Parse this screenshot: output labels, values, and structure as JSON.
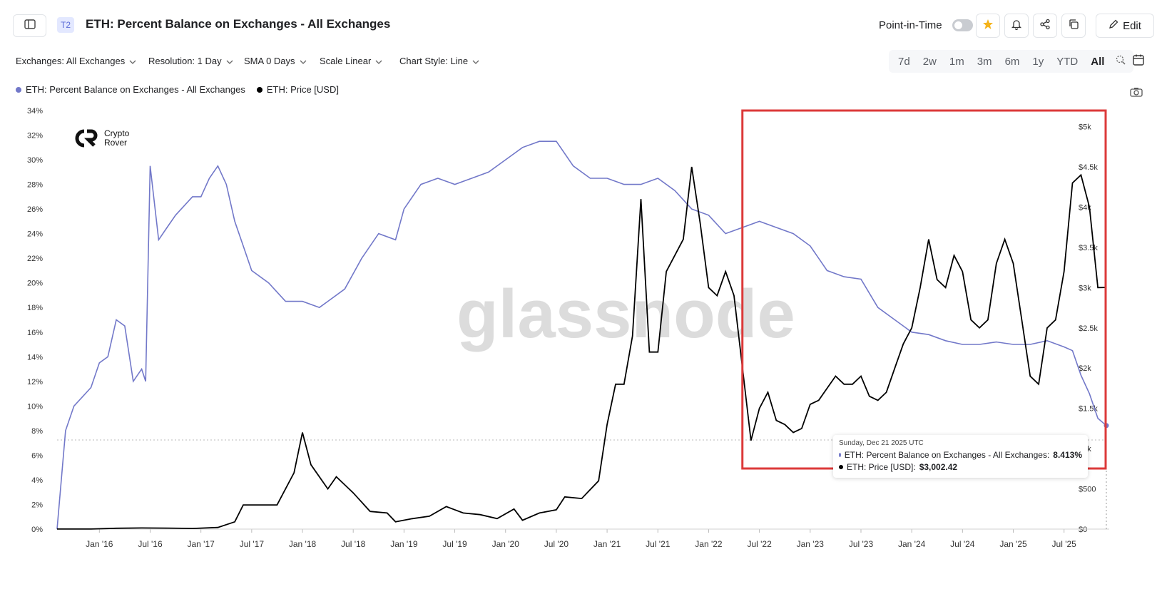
{
  "header": {
    "tier_badge": "T2",
    "title": "ETH: Percent Balance on Exchanges - All Exchanges",
    "point_in_time_label": "Point-in-Time",
    "edit_label": "Edit"
  },
  "controls": {
    "exchanges": "Exchanges: All Exchanges",
    "resolution": "Resolution: 1 Day",
    "sma": "SMA 0 Days",
    "scale": "Scale Linear",
    "chart_style": "Chart Style: Line",
    "ranges": [
      "7d",
      "2w",
      "1m",
      "3m",
      "6m",
      "1y",
      "YTD",
      "All"
    ],
    "active_range": "All"
  },
  "legend": {
    "items": [
      {
        "label": "ETH: Percent Balance on Exchanges - All Exchanges",
        "color": "#7278c9"
      },
      {
        "label": "ETH: Price [USD]",
        "color": "#000000"
      }
    ]
  },
  "watermark": {
    "text": "glassnode",
    "logo_line1": "Crypto",
    "logo_line2": "Rover"
  },
  "tooltip": {
    "date": "Sunday, Dec 21 2025 UTC",
    "balance_label": "ETH: Percent Balance on Exchanges - All Exchanges:",
    "balance_value": "8.413%",
    "price_label": "ETH: Price [USD]:",
    "price_value": "$3,002.42"
  },
  "colors": {
    "balance_line": "#7278c9",
    "price_line": "#000000",
    "highlight_box": "#dc3a3a",
    "accent_star": "#f5b31a"
  },
  "icons": [
    "sidebar-icon",
    "star-icon",
    "bell-icon",
    "share-icon",
    "copy-icon",
    "pencil-icon",
    "chevron-down-icon",
    "zoom-icon",
    "calendar-icon",
    "camera-icon"
  ],
  "chart_data": {
    "type": "line",
    "x_tick_labels": [
      "Jan '16",
      "Jul '16",
      "Jan '17",
      "Jul '17",
      "Jan '18",
      "Jul '18",
      "Jan '19",
      "Jul '19",
      "Jan '20",
      "Jul '20",
      "Jan '21",
      "Jul '21",
      "Jan '22",
      "Jul '22",
      "Jan '23",
      "Jul '23",
      "Jan '24",
      "Jul '24",
      "Jan '25",
      "Jul '25"
    ],
    "y_left_ticks": [
      "0%",
      "2%",
      "4%",
      "6%",
      "8%",
      "10%",
      "12%",
      "14%",
      "16%",
      "18%",
      "20%",
      "22%",
      "24%",
      "26%",
      "28%",
      "30%",
      "32%",
      "34%"
    ],
    "y_right_ticks": [
      "$0",
      "$500",
      "$1k",
      "$1.5k",
      "$2k",
      "$2.5k",
      "$3k",
      "$3.5k",
      "$4k",
      "$4.5k",
      "$5k"
    ],
    "y_left_range": [
      0,
      34
    ],
    "y_right_range": [
      0,
      5200
    ],
    "x_range": [
      "2015-08",
      "2025-12"
    ],
    "grid": false,
    "series": [
      {
        "name": "ETH: Percent Balance on Exchanges - All Exchanges",
        "axis": "left",
        "unit": "%",
        "x": [
          "2015-08",
          "2015-09",
          "2015-10",
          "2015-12",
          "2016-01",
          "2016-02",
          "2016-03",
          "2016-04",
          "2016-05",
          "2016-06",
          "2016-06-15",
          "2016-07",
          "2016-08",
          "2016-09",
          "2016-10",
          "2016-12",
          "2017-01",
          "2017-02",
          "2017-03",
          "2017-04",
          "2017-05",
          "2017-06",
          "2017-07",
          "2017-09",
          "2017-11",
          "2018-01",
          "2018-03",
          "2018-04",
          "2018-06",
          "2018-08",
          "2018-10",
          "2018-12",
          "2019-01",
          "2019-03",
          "2019-05",
          "2019-07",
          "2019-09",
          "2019-11",
          "2020-01",
          "2020-03",
          "2020-05",
          "2020-07",
          "2020-09",
          "2020-11",
          "2021-01",
          "2021-03",
          "2021-05",
          "2021-07",
          "2021-09",
          "2021-11",
          "2022-01",
          "2022-03",
          "2022-05",
          "2022-07",
          "2022-09",
          "2022-11",
          "2023-01",
          "2023-03",
          "2023-05",
          "2023-07",
          "2023-09",
          "2023-11",
          "2024-01",
          "2024-03",
          "2024-05",
          "2024-07",
          "2024-09",
          "2024-11",
          "2025-01",
          "2025-03",
          "2025-05",
          "2025-07",
          "2025-08",
          "2025-09",
          "2025-10",
          "2025-11",
          "2025-12"
        ],
        "values": [
          0,
          8,
          10,
          11.5,
          13.5,
          14,
          17,
          16.5,
          12,
          13,
          12,
          29.5,
          23.5,
          24.5,
          25.5,
          27,
          27,
          28.5,
          29.5,
          28,
          25,
          23,
          21,
          20,
          18.5,
          18.5,
          18,
          18.5,
          19.5,
          22,
          24,
          23.5,
          26,
          28,
          28.5,
          28,
          28.5,
          29,
          30,
          31,
          31.5,
          31.5,
          29.5,
          28.5,
          28.5,
          28,
          28,
          28.5,
          27.5,
          26,
          25.5,
          24,
          24.5,
          25,
          24.5,
          24,
          23,
          21,
          20.5,
          20.3,
          18,
          17,
          16,
          15.8,
          15.3,
          15,
          15,
          15.2,
          15,
          15,
          15.3,
          14.8,
          14.5,
          12.5,
          11,
          9,
          8.413
        ]
      },
      {
        "name": "ETH: Price [USD]",
        "axis": "right",
        "unit": "USD",
        "x": [
          "2015-08",
          "2015-12",
          "2016-03",
          "2016-06",
          "2016-09",
          "2016-12",
          "2017-03",
          "2017-05",
          "2017-06",
          "2017-08",
          "2017-10",
          "2017-12",
          "2018-01",
          "2018-02",
          "2018-04",
          "2018-05",
          "2018-07",
          "2018-09",
          "2018-11",
          "2018-12",
          "2019-02",
          "2019-04",
          "2019-06",
          "2019-08",
          "2019-10",
          "2019-12",
          "2020-02",
          "2020-03",
          "2020-05",
          "2020-07",
          "2020-08",
          "2020-10",
          "2020-12",
          "2021-01",
          "2021-02",
          "2021-03",
          "2021-04",
          "2021-05",
          "2021-06",
          "2021-07",
          "2021-08",
          "2021-09",
          "2021-10",
          "2021-11",
          "2021-12",
          "2022-01",
          "2022-02",
          "2022-03",
          "2022-04",
          "2022-05",
          "2022-06",
          "2022-07",
          "2022-08",
          "2022-09",
          "2022-10",
          "2022-11",
          "2022-12",
          "2023-01",
          "2023-02",
          "2023-03",
          "2023-04",
          "2023-05",
          "2023-06",
          "2023-07",
          "2023-08",
          "2023-09",
          "2023-10",
          "2023-11",
          "2023-12",
          "2024-01",
          "2024-02",
          "2024-03",
          "2024-04",
          "2024-05",
          "2024-06",
          "2024-07",
          "2024-08",
          "2024-09",
          "2024-10",
          "2024-11",
          "2024-12",
          "2025-01",
          "2025-02",
          "2025-03",
          "2025-04",
          "2025-05",
          "2025-06",
          "2025-07",
          "2025-08",
          "2025-09",
          "2025-10",
          "2025-11",
          "2025-12"
        ],
        "values": [
          1,
          1,
          11,
          14,
          12,
          8,
          20,
          90,
          300,
          300,
          300,
          700,
          1200,
          800,
          500,
          650,
          450,
          220,
          200,
          90,
          130,
          160,
          280,
          200,
          180,
          130,
          250,
          110,
          200,
          240,
          400,
          380,
          600,
          1300,
          1800,
          1800,
          2400,
          4100,
          2200,
          2200,
          3200,
          3400,
          3600,
          4500,
          3800,
          3000,
          2900,
          3200,
          2900,
          2000,
          1100,
          1500,
          1700,
          1350,
          1300,
          1200,
          1250,
          1550,
          1600,
          1750,
          1900,
          1800,
          1800,
          1900,
          1650,
          1600,
          1700,
          2000,
          2300,
          2500,
          3000,
          3600,
          3100,
          3000,
          3400,
          3200,
          2600,
          2500,
          2600,
          3300,
          3600,
          3300,
          2600,
          1900,
          1800,
          2500,
          2600,
          3200,
          4300,
          4400,
          4000,
          3000,
          3002.42
        ]
      }
    ],
    "highlight_box": {
      "x_start": "2022-06",
      "x_end": "2025-12"
    }
  }
}
